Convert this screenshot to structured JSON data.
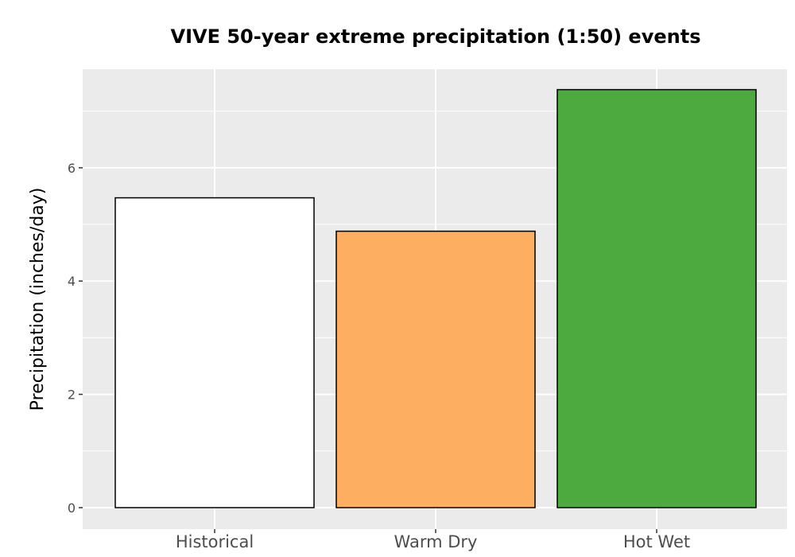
{
  "chart_data": {
    "type": "bar",
    "title": "VIVE 50-year extreme precipitation (1:50) events",
    "xlabel": "",
    "ylabel": "Precipitation (inches/day)",
    "categories": [
      "Historical",
      "Warm Dry",
      "Hot Wet"
    ],
    "values": [
      5.47,
      4.88,
      7.38
    ],
    "colors": [
      "#ffffff",
      "#fdae61",
      "#4daa3f"
    ],
    "bar_outline_color": "#000000",
    "panel_background": "#ebebeb",
    "grid": true,
    "grid_color": "#ffffff",
    "ylim": [
      -0.38,
      7.74
    ],
    "yticks": [
      0,
      2,
      4,
      6
    ],
    "ytick_labels": [
      "0",
      "2",
      "4",
      "6"
    ],
    "legend": "none"
  }
}
